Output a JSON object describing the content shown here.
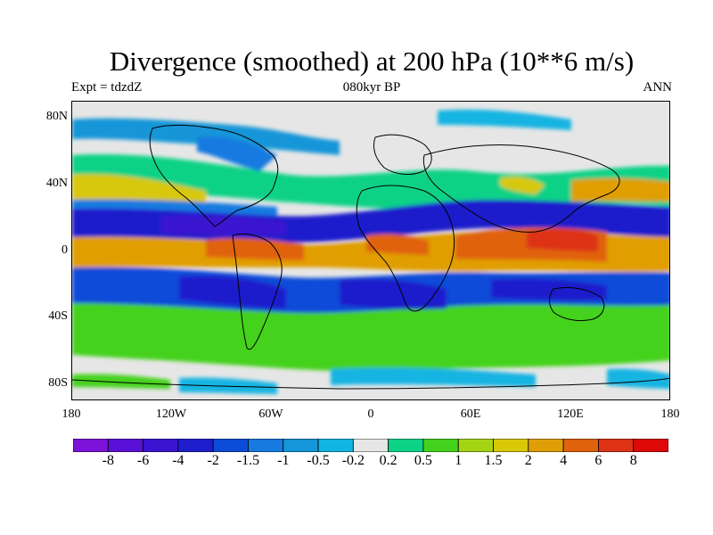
{
  "header": {
    "title": "Divergence (smoothed) at 200 hPa (10**6 m/s)",
    "left": "Expt = tdzdZ",
    "center": "080kyr BP",
    "right": "ANN"
  },
  "map": {
    "lat_labels": [
      "80N",
      "40N",
      "0",
      "40S",
      "80S"
    ],
    "lon_labels": [
      "180",
      "120W",
      "60W",
      "0",
      "60E",
      "120E",
      "180"
    ]
  },
  "colorbar": {
    "colors": [
      "#7b13d8",
      "#5a10d6",
      "#3a14d0",
      "#1e1ecc",
      "#0c4cd8",
      "#167ae0",
      "#1496d8",
      "#12b4e2",
      "#e6e6e6",
      "#0cd286",
      "#44d21e",
      "#a4d414",
      "#d8c808",
      "#e09e06",
      "#e0620c",
      "#dd3216",
      "#dd0808"
    ],
    "labels": [
      "-8",
      "-6",
      "-4",
      "-2",
      "-1.5",
      "-1",
      "-0.5",
      "-0.2",
      "0.2",
      "0.5",
      "1",
      "1.5",
      "2",
      "4",
      "6",
      "8"
    ]
  }
}
